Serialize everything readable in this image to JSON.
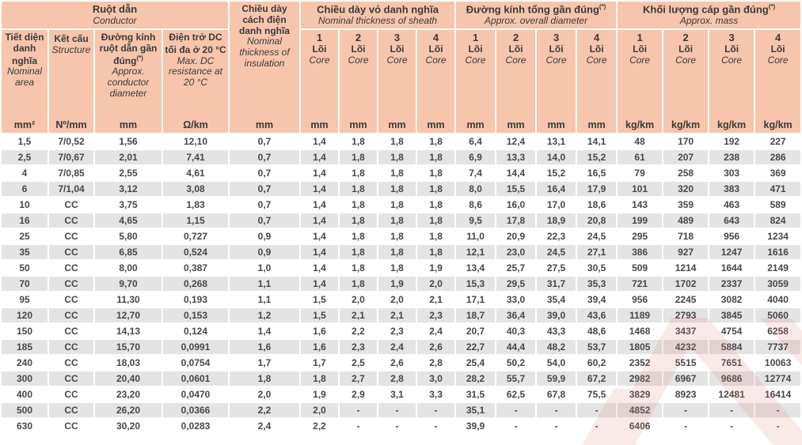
{
  "table": {
    "groups": {
      "conductor": {
        "vn": "Ruột dẫn",
        "en": "Conductor",
        "marker": ""
      },
      "sheath": {
        "vn": "Chiều dày vỏ danh nghĩa",
        "en": "Nominal thickness of sheath",
        "marker": ""
      },
      "diameter": {
        "vn": "Đường kính tổng gần đúng",
        "en": "Approx. overall diameter",
        "marker": "(*)"
      },
      "mass": {
        "vn": "Khối lượng cáp gần đúng",
        "en": "Approx. mass",
        "marker": "(*)"
      }
    },
    "insulation_col": {
      "vn": "Chiều dày cách điện danh nghĩa",
      "en": "Nominal thickness of insulation",
      "unit": "mm",
      "marker": ""
    },
    "conductor_cols": [
      {
        "vn": "Tiết diện danh nghĩa",
        "en": "Nominal area",
        "unit": "mm²",
        "marker": ""
      },
      {
        "vn": "Kết cấu",
        "en": "Structure",
        "unit": "Nº/mm",
        "marker": ""
      },
      {
        "vn": "Đường kính ruột dẫn gần đúng",
        "en": "Approx. conductor diameter",
        "unit": "mm",
        "marker": "(*)"
      },
      {
        "vn": "Điện trở DC tối đa ở 20 °C",
        "en": "Max. DC resistance at 20 °C",
        "unit": "Ω/km",
        "marker": ""
      }
    ],
    "core_header": {
      "numbers": [
        "1",
        "2",
        "3",
        "4"
      ],
      "vn": "Lõi",
      "en": "Core"
    },
    "core_units": {
      "sheath": "mm",
      "diameter": "mm",
      "mass": "kg/km"
    },
    "rows": [
      {
        "area": "1,5",
        "structure": "7/0,52",
        "cond_dia": "1,56",
        "resistance": "12,10",
        "insulation": "0,7",
        "sheath": [
          "1,4",
          "1,8",
          "1,8",
          "1,8"
        ],
        "diameter": [
          "6,4",
          "12,4",
          "13,1",
          "14,1"
        ],
        "mass": [
          "48",
          "170",
          "192",
          "227"
        ]
      },
      {
        "area": "2,5",
        "structure": "7/0,67",
        "cond_dia": "2,01",
        "resistance": "7,41",
        "insulation": "0,7",
        "sheath": [
          "1,4",
          "1,8",
          "1,8",
          "1,8"
        ],
        "diameter": [
          "6,9",
          "13,3",
          "14,0",
          "15,2"
        ],
        "mass": [
          "61",
          "207",
          "238",
          "286"
        ]
      },
      {
        "area": "4",
        "structure": "7/0,85",
        "cond_dia": "2,55",
        "resistance": "4,61",
        "insulation": "0,7",
        "sheath": [
          "1,4",
          "1,8",
          "1,8",
          "1,8"
        ],
        "diameter": [
          "7,4",
          "14,4",
          "15,2",
          "16,5"
        ],
        "mass": [
          "79",
          "258",
          "303",
          "369"
        ]
      },
      {
        "area": "6",
        "structure": "7/1,04",
        "cond_dia": "3,12",
        "resistance": "3,08",
        "insulation": "0,7",
        "sheath": [
          "1,4",
          "1,8",
          "1,8",
          "1,8"
        ],
        "diameter": [
          "8,0",
          "15,5",
          "16,4",
          "17,9"
        ],
        "mass": [
          "101",
          "320",
          "383",
          "471"
        ]
      },
      {
        "area": "10",
        "structure": "CC",
        "cond_dia": "3,75",
        "resistance": "1,83",
        "insulation": "0,7",
        "sheath": [
          "1,4",
          "1,8",
          "1,8",
          "1,8"
        ],
        "diameter": [
          "8,6",
          "16,0",
          "17,0",
          "18,6"
        ],
        "mass": [
          "143",
          "359",
          "463",
          "589"
        ]
      },
      {
        "area": "16",
        "structure": "CC",
        "cond_dia": "4,65",
        "resistance": "1,15",
        "insulation": "0,7",
        "sheath": [
          "1,4",
          "1,8",
          "1,8",
          "1,8"
        ],
        "diameter": [
          "9,5",
          "17,8",
          "18,9",
          "20,8"
        ],
        "mass": [
          "199",
          "489",
          "643",
          "824"
        ]
      },
      {
        "area": "25",
        "structure": "CC",
        "cond_dia": "5,80",
        "resistance": "0,727",
        "insulation": "0,9",
        "sheath": [
          "1,4",
          "1,8",
          "1,8",
          "1,8"
        ],
        "diameter": [
          "11,0",
          "20,9",
          "22,3",
          "24,5"
        ],
        "mass": [
          "295",
          "718",
          "956",
          "1234"
        ]
      },
      {
        "area": "35",
        "structure": "CC",
        "cond_dia": "6,85",
        "resistance": "0,524",
        "insulation": "0,9",
        "sheath": [
          "1,4",
          "1,8",
          "1,8",
          "1,8"
        ],
        "diameter": [
          "12,1",
          "23,0",
          "24,5",
          "27,1"
        ],
        "mass": [
          "386",
          "927",
          "1247",
          "1616"
        ]
      },
      {
        "area": "50",
        "structure": "CC",
        "cond_dia": "8,00",
        "resistance": "0,387",
        "insulation": "1,0",
        "sheath": [
          "1,4",
          "1,8",
          "1,8",
          "1,9"
        ],
        "diameter": [
          "13,4",
          "25,7",
          "27,5",
          "30,5"
        ],
        "mass": [
          "509",
          "1214",
          "1644",
          "2149"
        ]
      },
      {
        "area": "70",
        "structure": "CC",
        "cond_dia": "9,70",
        "resistance": "0,268",
        "insulation": "1,1",
        "sheath": [
          "1,4",
          "1,8",
          "1,9",
          "2,0"
        ],
        "diameter": [
          "15,3",
          "29,5",
          "31,7",
          "35,3"
        ],
        "mass": [
          "721",
          "1702",
          "2337",
          "3059"
        ]
      },
      {
        "area": "95",
        "structure": "CC",
        "cond_dia": "11,30",
        "resistance": "0,193",
        "insulation": "1,1",
        "sheath": [
          "1,5",
          "2,0",
          "2,0",
          "2,1"
        ],
        "diameter": [
          "17,1",
          "33,0",
          "35,4",
          "39,4"
        ],
        "mass": [
          "956",
          "2245",
          "3082",
          "4040"
        ]
      },
      {
        "area": "120",
        "structure": "CC",
        "cond_dia": "12,70",
        "resistance": "0,153",
        "insulation": "1,2",
        "sheath": [
          "1,5",
          "2,1",
          "2,1",
          "2,3"
        ],
        "diameter": [
          "18,7",
          "36,4",
          "39,0",
          "43,6"
        ],
        "mass": [
          "1189",
          "2793",
          "3845",
          "5060"
        ]
      },
      {
        "area": "150",
        "structure": "CC",
        "cond_dia": "14,13",
        "resistance": "0,124",
        "insulation": "1,4",
        "sheath": [
          "1,6",
          "2,2",
          "2,3",
          "2,4"
        ],
        "diameter": [
          "20,7",
          "40,3",
          "43,3",
          "48,6"
        ],
        "mass": [
          "1468",
          "3437",
          "4754",
          "6258"
        ]
      },
      {
        "area": "185",
        "structure": "CC",
        "cond_dia": "15,70",
        "resistance": "0,0991",
        "insulation": "1,6",
        "sheath": [
          "1,6",
          "2,3",
          "2,4",
          "2,6"
        ],
        "diameter": [
          "22,7",
          "44,4",
          "48,2",
          "53,7"
        ],
        "mass": [
          "1805",
          "4232",
          "5884",
          "7737"
        ]
      },
      {
        "area": "240",
        "structure": "CC",
        "cond_dia": "18,03",
        "resistance": "0,0754",
        "insulation": "1,7",
        "sheath": [
          "1,7",
          "2,5",
          "2,6",
          "2,8"
        ],
        "diameter": [
          "25,4",
          "50,2",
          "54,0",
          "60,2"
        ],
        "mass": [
          "2352",
          "5515",
          "7651",
          "10063"
        ]
      },
      {
        "area": "300",
        "structure": "CC",
        "cond_dia": "20,40",
        "resistance": "0,0601",
        "insulation": "1,8",
        "sheath": [
          "1,8",
          "2,7",
          "2,8",
          "3,0"
        ],
        "diameter": [
          "28,2",
          "55,7",
          "59,9",
          "67,2"
        ],
        "mass": [
          "2982",
          "6967",
          "9686",
          "12774"
        ]
      },
      {
        "area": "400",
        "structure": "CC",
        "cond_dia": "23,20",
        "resistance": "0,0470",
        "insulation": "2,0",
        "sheath": [
          "1,9",
          "2,9",
          "3,1",
          "3,3"
        ],
        "diameter": [
          "31,5",
          "62,5",
          "67,8",
          "75,5"
        ],
        "mass": [
          "3829",
          "8923",
          "12481",
          "16414"
        ]
      },
      {
        "area": "500",
        "structure": "CC",
        "cond_dia": "26,20",
        "resistance": "0,0366",
        "insulation": "2,2",
        "sheath": [
          "2,0",
          "-",
          "-",
          "-"
        ],
        "diameter": [
          "35,1",
          "-",
          "-",
          "-"
        ],
        "mass": [
          "4852",
          "-",
          "-",
          "-"
        ]
      },
      {
        "area": "630",
        "structure": "CC",
        "cond_dia": "30,20",
        "resistance": "0,0283",
        "insulation": "2,4",
        "sheath": [
          "2,2",
          "-",
          "-",
          "-"
        ],
        "diameter": [
          "39,9",
          "-",
          "-",
          "-"
        ],
        "mass": [
          "6406",
          "-",
          "-",
          "-"
        ]
      }
    ]
  },
  "colors": {
    "header_bg": "#f7c5ab",
    "row_alt_bg": "#e4e4e4",
    "text": "#3d3d3d",
    "watermark": "#dd8177"
  }
}
